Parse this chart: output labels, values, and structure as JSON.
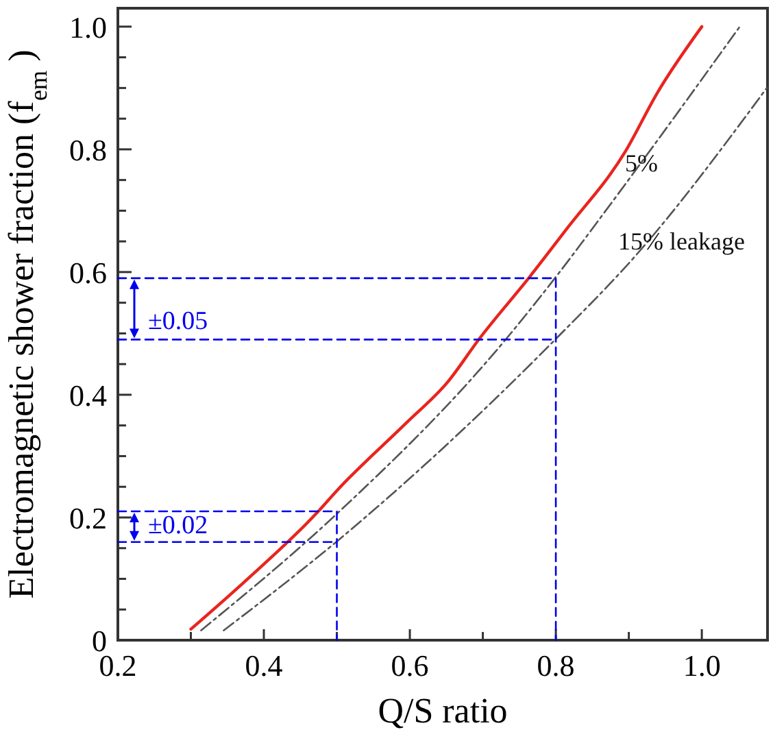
{
  "chart_data": {
    "type": "line",
    "xlabel": "Q/S ratio",
    "ylabel": "Electromagnetic shower fraction (f$_{em}$)",
    "xlim": [
      0.2,
      1.09
    ],
    "ylim": [
      0,
      1.03
    ],
    "xticks": [
      0.2,
      {
        "value": 0.3,
        "label": null
      },
      0.4,
      {
        "value": 0.5,
        "label": null
      },
      0.6,
      {
        "value": 0.7,
        "label": null
      },
      0.8,
      {
        "value": 0.9,
        "label": null
      },
      {
        "value": 1,
        "label": "1.0"
      }
    ],
    "yticks": [
      0,
      {
        "value": 0.05,
        "label": null
      },
      {
        "value": 0.1,
        "label": null
      },
      {
        "value": 0.15,
        "label": null
      },
      0.2,
      {
        "value": 0.25,
        "label": null
      },
      {
        "value": 0.3,
        "label": null
      },
      {
        "value": 0.35,
        "label": null
      },
      0.4,
      {
        "value": 0.45,
        "label": null
      },
      {
        "value": 0.5,
        "label": null
      },
      {
        "value": 0.55,
        "label": null
      },
      0.6,
      {
        "value": 0.65,
        "label": null
      },
      {
        "value": 0.7,
        "label": null
      },
      {
        "value": 0.75,
        "label": null
      },
      0.8,
      {
        "value": 0.85,
        "label": null
      },
      {
        "value": 0.9,
        "label": null
      },
      {
        "value": 0.95,
        "label": null
      },
      {
        "value": 1,
        "label": "1.0"
      }
    ],
    "grid": false,
    "marker": "none",
    "series": [
      {
        "color": "#e8251f",
        "line_style": "solid",
        "x": [
          0.3,
          0.376,
          0.473,
          0.501,
          0.595,
          0.652,
          0.695,
          0.764,
          0.814,
          0.895,
          0.939,
          1.0
        ],
        "values": [
          0.018,
          0.098,
          0.208,
          0.245,
          0.354,
          0.421,
          0.491,
          0.592,
          0.669,
          0.796,
          0.892,
          1.0
        ]
      },
      {
        "color": "#555555",
        "line_style": "dashdot",
        "x": [
          0.314,
          0.5,
          0.727,
          0.8,
          0.877,
          1.052
        ],
        "values": [
          0.016,
          0.206,
          0.484,
          0.592,
          0.714,
          1.0
        ]
      },
      {
        "color": "#555555",
        "line_style": "dashdot",
        "x": [
          0.345,
          0.5,
          0.8,
          0.908,
          1.089
        ],
        "values": [
          0.016,
          0.161,
          0.491,
          0.625,
          0.9
        ]
      },
      {
        "color": "#0000ee",
        "line_style": "dashed",
        "x": [
          0.2,
          0.8,
          0.8
        ],
        "values": [
          0.59,
          0.59,
          0
        ]
      },
      {
        "color": "#0000ee",
        "line_style": "dashed",
        "x": [
          0.2,
          0.8
        ],
        "values": [
          0.49,
          0.49
        ]
      },
      {
        "color": "#0000ee",
        "line_style": "dashed",
        "x": [
          0.2,
          0.5,
          0.5
        ],
        "values": [
          0.21,
          0.21,
          0
        ]
      },
      {
        "color": "#0000ee",
        "line_style": "dashed",
        "x": [
          0.2,
          0.5
        ],
        "values": [
          0.16,
          0.16
        ]
      }
    ],
    "annotations": [
      "5%",
      "15% leakage",
      "±0.05",
      "±0.02"
    ]
  }
}
